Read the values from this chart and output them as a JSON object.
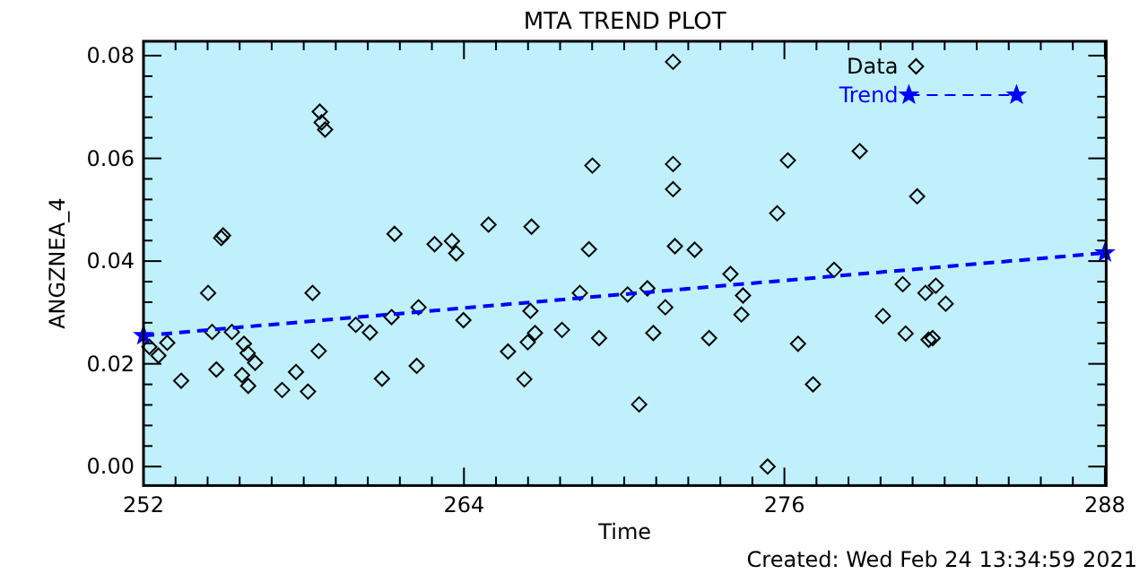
{
  "chart_data": {
    "type": "scatter",
    "title": "MTA TREND PLOT",
    "xlabel": "Time",
    "ylabel": "ANGZNEA_4",
    "annotations": [
      "Created: Wed Feb 24 13:34:59 2021"
    ],
    "xlim": [
      252,
      288.05
    ],
    "ylim": [
      -0.0037,
      0.0828
    ],
    "xticks": [
      252,
      {
        "value": 253.2,
        "label": null
      },
      {
        "value": 254.4,
        "label": null
      },
      {
        "value": 255.6,
        "label": null
      },
      {
        "value": 256.8,
        "label": null
      },
      {
        "value": 258,
        "label": null
      },
      {
        "value": 259.2,
        "label": null
      },
      {
        "value": 260.4,
        "label": null
      },
      {
        "value": 261.6,
        "label": null
      },
      {
        "value": 262.8,
        "label": null
      },
      264,
      {
        "value": 265.2,
        "label": null
      },
      {
        "value": 266.4,
        "label": null
      },
      {
        "value": 267.6,
        "label": null
      },
      {
        "value": 268.8,
        "label": null
      },
      {
        "value": 270,
        "label": null
      },
      {
        "value": 271.2,
        "label": null
      },
      {
        "value": 272.4,
        "label": null
      },
      {
        "value": 273.6,
        "label": null
      },
      {
        "value": 274.8,
        "label": null
      },
      276,
      {
        "value": 277.2,
        "label": null
      },
      {
        "value": 278.4,
        "label": null
      },
      {
        "value": 279.6,
        "label": null
      },
      {
        "value": 280.8,
        "label": null
      },
      {
        "value": 282,
        "label": null
      },
      {
        "value": 283.2,
        "label": null
      },
      {
        "value": 284.4,
        "label": null
      },
      {
        "value": 285.6,
        "label": null
      },
      {
        "value": 286.8,
        "label": null
      },
      288
    ],
    "yticks": [
      {
        "value": 0,
        "label": "0.00"
      },
      {
        "value": 0.004,
        "label": null
      },
      {
        "value": 0.008,
        "label": null
      },
      {
        "value": 0.012,
        "label": null
      },
      {
        "value": 0.016,
        "label": null
      },
      {
        "value": 0.02,
        "label": "0.02"
      },
      {
        "value": 0.024,
        "label": null
      },
      {
        "value": 0.028,
        "label": null
      },
      {
        "value": 0.032,
        "label": null
      },
      {
        "value": 0.036,
        "label": null
      },
      {
        "value": 0.04,
        "label": "0.04"
      },
      {
        "value": 0.044,
        "label": null
      },
      {
        "value": 0.048,
        "label": null
      },
      {
        "value": 0.052,
        "label": null
      },
      {
        "value": 0.056,
        "label": null
      },
      {
        "value": 0.06,
        "label": "0.06"
      },
      {
        "value": 0.064,
        "label": null
      },
      {
        "value": 0.068,
        "label": null
      },
      {
        "value": 0.072,
        "label": null
      },
      {
        "value": 0.076,
        "label": null
      },
      {
        "value": 0.08,
        "label": "0.08"
      }
    ],
    "grid": false,
    "legend": "top right",
    "series": [
      {
        "name": "Data",
        "marker": "diamond",
        "color": "#000000",
        "x": [
          252.22,
          252.56,
          252.89,
          253.41,
          254.42,
          254.57,
          254.73,
          254.91,
          254.98,
          255.31,
          255.69,
          255.76,
          255.9,
          255.92,
          256.18,
          257.19,
          257.71,
          258.16,
          258.33,
          258.56,
          258.6,
          258.67,
          258.8,
          259.95,
          260.48,
          260.93,
          261.29,
          261.4,
          262.23,
          262.3,
          262.9,
          263.55,
          263.71,
          263.98,
          264.92,
          265.65,
          266.26,
          266.39,
          266.49,
          266.53,
          266.66,
          267.67,
          268.34,
          268.68,
          268.81,
          269.06,
          270.13,
          270.56,
          270.87,
          271.09,
          271.54,
          271.83,
          271.83,
          271.83,
          271.9,
          272.64,
          273.18,
          273.98,
          274.39,
          274.45,
          275.37,
          275.73,
          276.13,
          276.51,
          277.07,
          277.86,
          278.82,
          279.69,
          280.43,
          280.54,
          280.97,
          281.28,
          281.4,
          281.55,
          281.67,
          282.04
        ],
        "values": [
          0.0233,
          0.0216,
          0.0241,
          0.0167,
          0.0338,
          0.0262,
          0.0189,
          0.0445,
          0.045,
          0.0262,
          0.0178,
          0.0239,
          0.0221,
          0.0157,
          0.0202,
          0.0149,
          0.0184,
          0.0146,
          0.0338,
          0.0225,
          0.0691,
          0.067,
          0.0656,
          0.0276,
          0.0261,
          0.0171,
          0.0291,
          0.0453,
          0.0196,
          0.031,
          0.0433,
          0.0439,
          0.0415,
          0.0285,
          0.0471,
          0.0224,
          0.017,
          0.0242,
          0.0303,
          0.0467,
          0.026,
          0.0266,
          0.0338,
          0.0423,
          0.0586,
          0.025,
          0.0335,
          0.0121,
          0.0347,
          0.026,
          0.031,
          0.0788,
          0.0589,
          0.054,
          0.0429,
          0.0422,
          0.025,
          0.0375,
          0.0296,
          0.0333,
          0.0,
          0.0493,
          0.0596,
          0.0239,
          0.016,
          0.0383,
          0.0614,
          0.0293,
          0.0355,
          0.0259,
          0.0526,
          0.0338,
          0.0247,
          0.025,
          0.0352,
          0.0317
        ]
      },
      {
        "name": "Trend",
        "type": "line",
        "marker": "star",
        "line_style": "dashed",
        "color": "#0000ff",
        "x": [
          252,
          288
        ],
        "values": [
          0.0255,
          0.0416
        ]
      }
    ]
  }
}
